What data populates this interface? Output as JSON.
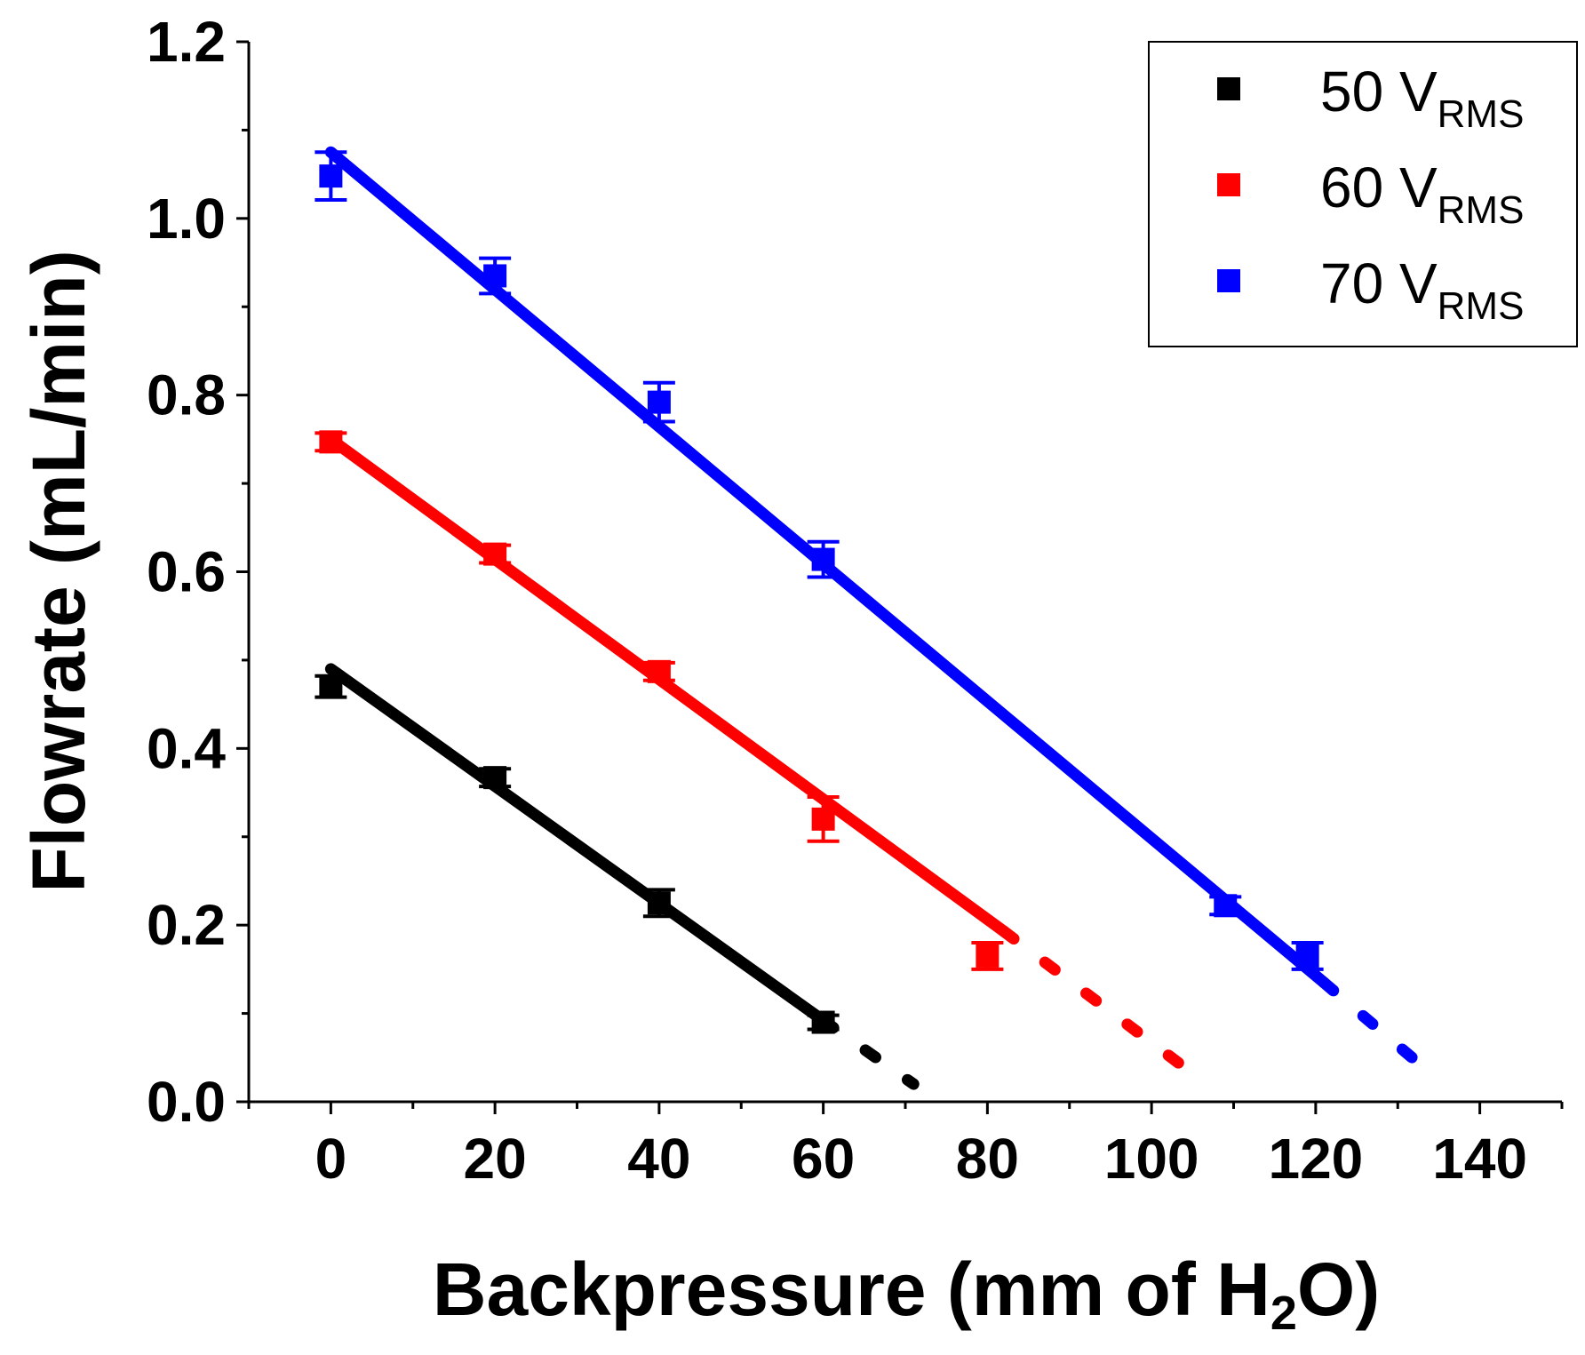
{
  "chart_data": {
    "type": "scatter",
    "xlabel": "Backpressure (mm of H",
    "xlabel_sub": "2",
    "xlabel_tail": "O)",
    "ylabel": "Flowrate (mL/min)",
    "xlim": [
      -10,
      150
    ],
    "ylim": [
      0,
      1.2
    ],
    "xticks": [
      "0",
      "20",
      "40",
      "60",
      "80",
      "100",
      "120",
      "140"
    ],
    "xtick_values": [
      0,
      20,
      40,
      60,
      80,
      100,
      120,
      140
    ],
    "yticks": [
      "0.0",
      "0.2",
      "0.4",
      "0.6",
      "0.8",
      "1.0",
      "1.2"
    ],
    "ytick_values": [
      0,
      0.2,
      0.4,
      0.6,
      0.8,
      1.0,
      1.2
    ],
    "legend_position": "top-right",
    "series": [
      {
        "name": "50 V",
        "name_sub": "RMS",
        "color": "#000000",
        "x": [
          0,
          20,
          40,
          60
        ],
        "y": [
          0.47,
          0.367,
          0.225,
          0.09
        ],
        "err": [
          0.012,
          0.01,
          0.015,
          0.008
        ],
        "fit_solid": [
          [
            0,
            0.49
          ],
          [
            60,
            0.092
          ]
        ],
        "fit_dashed": [
          [
            60,
            0.092
          ],
          [
            71,
            0.02
          ]
        ]
      },
      {
        "name": "60 V",
        "name_sub": "RMS",
        "color": "#ff0000",
        "x": [
          0,
          20,
          40,
          60,
          80
        ],
        "y": [
          0.747,
          0.62,
          0.487,
          0.32,
          0.165
        ],
        "err": [
          0.01,
          0.01,
          0.01,
          0.025,
          0.015
        ],
        "fit_solid": [
          [
            0,
            0.75
          ],
          [
            82,
            0.193
          ]
        ],
        "fit_dashed": [
          [
            82,
            0.193
          ],
          [
            105,
            0.032
          ]
        ]
      },
      {
        "name": "70 V",
        "name_sub": "RMS",
        "color": "#0000ff",
        "x": [
          0,
          20,
          40,
          60,
          109,
          119
        ],
        "y": [
          1.048,
          0.935,
          0.792,
          0.614,
          0.222,
          0.165
        ],
        "err": [
          0.027,
          0.02,
          0.022,
          0.02,
          0.01,
          0.015
        ],
        "fit_solid": [
          [
            0,
            1.075
          ],
          [
            121,
            0.135
          ]
        ],
        "fit_dashed": [
          [
            121,
            0.135
          ],
          [
            133,
            0.04
          ]
        ]
      }
    ]
  }
}
